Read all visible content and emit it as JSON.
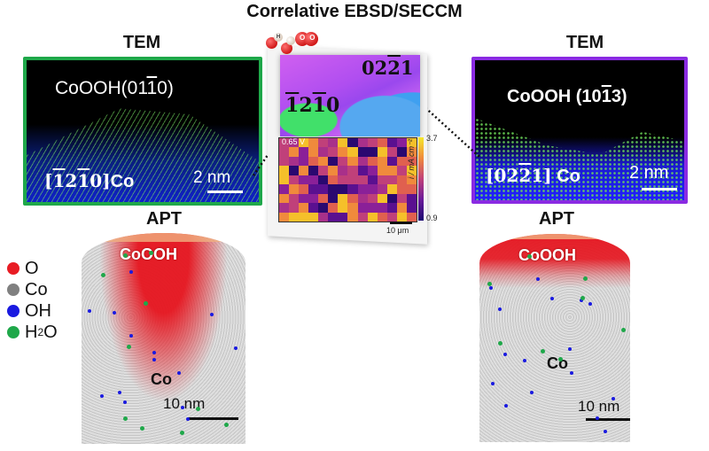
{
  "title": "Correlative EBSD/SECCM",
  "tem_left": {
    "header": "TEM",
    "top_label": {
      "prefix": "CoOOH(01",
      "bar": "1",
      "suffix": "0)"
    },
    "zone_axis": {
      "open": "[",
      "d1": "1",
      "d2": "2",
      "d3": "1",
      "d4": "0",
      "close": "]",
      "suffix": "Co"
    },
    "scale_bar": "2 nm",
    "border_color": "#1fa84a"
  },
  "tem_right": {
    "header": "TEM",
    "top_label": {
      "prefix": "CoOOH (10",
      "bar": "1",
      "suffix": "3)"
    },
    "zone_axis": {
      "open": "[",
      "d1": "0",
      "d2": "2",
      "d3": "2",
      "d4": "1",
      "close": "]",
      "suffix": "Co"
    },
    "scale_bar": "2 nm",
    "border_color": "#8a2be2"
  },
  "center": {
    "molecules": {
      "water": "H",
      "oxygen": "O"
    },
    "ebsd_labels": {
      "left": {
        "d1": "1",
        "d2": "2",
        "d3": "1",
        "d4": "0"
      },
      "right": {
        "d1": "0",
        "d2": "2",
        "d3": "2",
        "d4": "1"
      }
    },
    "seccm": {
      "potential": "0.65 V",
      "colorbar_max": "3.7",
      "colorbar_min": "0.9",
      "colorbar_label": "i / mA cm⁻²",
      "scale_bar": "10 μm"
    }
  },
  "apt_left": {
    "header": "APT",
    "top_tag": "CoOOH",
    "bulk_tag": "Co",
    "scale_bar": "10 nm"
  },
  "apt_right": {
    "header": "APT",
    "top_tag": "CoOOH",
    "bulk_tag": "Co",
    "scale_bar": "10 nm"
  },
  "legend": [
    {
      "label": "O",
      "color": "#e81c24"
    },
    {
      "label": "Co",
      "color": "#808080"
    },
    {
      "label": "OH",
      "color": "#1a1ae0"
    },
    {
      "label": "H",
      "sub": "2",
      "label_tail": "O",
      "color": "#1fa84a"
    }
  ]
}
